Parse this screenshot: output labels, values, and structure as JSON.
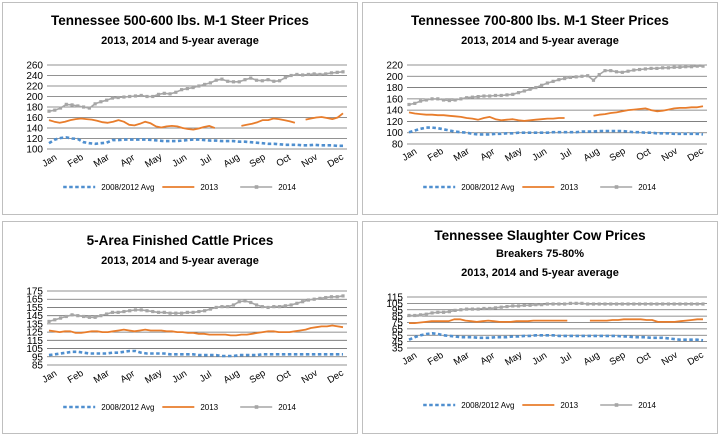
{
  "colors": {
    "avg": "#4f8fcf",
    "y2013": "#e87d2c",
    "y2014": "#a6a6a6",
    "grid": "#6e6e6e"
  },
  "chart_data": [
    {
      "type": "line",
      "title": "Tennessee 500-600 lbs. M-1 Steer Prices",
      "subtitle_lines": [
        "2013, 2014 and 5-year average"
      ],
      "x_ticks": [
        "Jan",
        "Feb",
        "Mar",
        "Apr",
        "May",
        "Jun",
        "Jul",
        "Aug",
        "Sep",
        "Oct",
        "Nov",
        "Dec"
      ],
      "x_tick_style": "rot",
      "y_ticks": [
        100,
        120,
        140,
        160,
        180,
        200,
        220,
        240,
        260
      ],
      "ylim": [
        100,
        260
      ],
      "legend": [
        "2008/2012 Avg",
        "2013",
        "2014"
      ],
      "series": [
        {
          "name": "2008/2012 Avg",
          "style": "avg",
          "values": [
            111,
            118,
            121,
            122,
            120,
            119,
            113,
            111,
            110,
            111,
            112,
            117,
            117,
            118,
            118,
            118,
            118,
            118,
            117,
            116,
            115,
            115,
            115,
            116,
            117,
            118,
            118,
            117,
            116,
            116,
            115,
            115,
            115,
            114,
            114,
            113,
            112,
            111,
            110,
            110,
            109,
            108,
            108,
            108,
            107,
            107,
            108,
            107,
            107,
            107,
            106,
            106
          ]
        },
        {
          "name": "2013",
          "style": "y2013",
          "values": [
            155,
            152,
            150,
            152,
            155,
            157,
            158,
            157,
            156,
            154,
            151,
            150,
            152,
            155,
            152,
            146,
            145,
            148,
            152,
            149,
            143,
            141,
            143,
            144,
            143,
            140,
            138,
            137,
            139,
            142,
            144,
            140,
            null,
            null,
            null,
            null,
            144,
            146,
            148,
            151,
            155,
            155,
            158,
            157,
            155,
            153,
            150,
            null,
            156,
            158,
            160,
            161,
            159,
            157,
            160,
            168
          ]
        },
        {
          "name": "2014",
          "style": "y2014",
          "values": [
            172,
            174,
            178,
            185,
            184,
            182,
            180,
            178,
            186,
            190,
            193,
            197,
            198,
            199,
            200,
            201,
            202,
            200,
            200,
            204,
            206,
            205,
            208,
            213,
            215,
            217,
            220,
            223,
            226,
            231,
            233,
            229,
            228,
            228,
            232,
            235,
            231,
            230,
            232,
            229,
            230,
            236,
            240,
            242,
            241,
            242,
            243,
            242,
            243,
            245,
            246,
            247
          ]
        }
      ]
    },
    {
      "type": "line",
      "title": "Tennessee 700-800 lbs. M-1 Steer Prices",
      "subtitle_lines": [
        "2013, 2014 and 5-year average"
      ],
      "x_ticks": [
        "Jan",
        "Feb",
        "Mar",
        "Apr",
        "May",
        "Jun",
        "Jul",
        "Aug",
        "Sep",
        "Oct",
        "Nov",
        "Dec"
      ],
      "x_tick_style": "rot",
      "y_ticks": [
        80,
        100,
        120,
        140,
        160,
        180,
        200,
        220
      ],
      "ylim": [
        80,
        220
      ],
      "legend": [
        "2008/2012 Avg",
        "2013",
        "2014"
      ],
      "series": [
        {
          "name": "2008/2012 Avg",
          "style": "avg",
          "values": [
            101,
            104,
            107,
            109,
            109,
            108,
            106,
            104,
            102,
            101,
            100,
            98,
            97,
            97,
            97,
            98,
            98,
            99,
            99,
            100,
            100,
            100,
            100,
            100,
            100,
            101,
            101,
            101,
            101,
            101,
            102,
            102,
            102,
            103,
            103,
            103,
            103,
            103,
            102,
            101,
            101,
            100,
            100,
            99,
            99,
            99,
            98,
            98,
            98,
            98,
            98,
            97
          ]
        },
        {
          "name": "2013",
          "style": "y2013",
          "values": [
            136,
            134,
            133,
            132,
            132,
            131,
            131,
            130,
            129,
            128,
            126,
            125,
            123,
            126,
            128,
            124,
            122,
            123,
            124,
            122,
            121,
            122,
            123,
            124,
            125,
            125,
            126,
            126,
            null,
            null,
            null,
            null,
            130,
            132,
            133,
            135,
            136,
            138,
            140,
            141,
            142,
            143,
            140,
            138,
            139,
            141,
            143,
            144,
            144,
            145,
            145,
            147
          ]
        },
        {
          "name": "2014",
          "style": "y2014",
          "values": [
            150,
            152,
            156,
            158,
            160,
            160,
            158,
            157,
            158,
            160,
            162,
            163,
            164,
            165,
            165,
            166,
            166,
            167,
            168,
            171,
            174,
            177,
            180,
            184,
            188,
            191,
            194,
            196,
            198,
            199,
            200,
            201,
            193,
            203,
            210,
            210,
            208,
            207,
            209,
            211,
            212,
            213,
            214,
            214,
            215,
            215,
            216,
            216,
            217,
            217,
            218,
            218
          ]
        }
      ]
    },
    {
      "type": "line",
      "title": "5-Area Finished Cattle Prices",
      "subtitle_lines": [
        "2013, 2014 and 5-year average"
      ],
      "x_ticks": [
        "Jan",
        "Feb",
        "Mar",
        "Apr",
        "May",
        "Jun",
        "Jul",
        "Aug",
        "Sep",
        "Oct",
        "Nov",
        "Dec"
      ],
      "x_tick_style": "rot",
      "y_ticks": [
        85,
        95,
        105,
        115,
        125,
        135,
        145,
        155,
        165,
        175
      ],
      "ylim": [
        85,
        175
      ],
      "legend": [
        "2008/2012 Avg",
        "2013",
        "2014"
      ],
      "series": [
        {
          "name": "2008/2012 Avg",
          "style": "avg",
          "values": [
            97,
            98,
            99,
            100,
            101,
            101,
            100,
            99,
            99,
            99,
            99,
            100,
            100,
            101,
            102,
            102,
            100,
            99,
            99,
            99,
            99,
            98,
            98,
            98,
            98,
            98,
            97,
            97,
            97,
            97,
            96,
            96,
            96,
            97,
            97,
            97,
            97,
            98,
            98,
            98,
            98,
            98,
            98,
            98,
            98,
            98,
            98,
            98,
            98,
            98,
            98,
            98
          ]
        },
        {
          "name": "2013",
          "style": "y2013",
          "values": [
            127,
            126,
            125,
            126,
            126,
            124,
            124,
            125,
            126,
            126,
            125,
            125,
            126,
            127,
            128,
            127,
            126,
            127,
            128,
            127,
            127,
            127,
            126,
            126,
            125,
            125,
            124,
            124,
            123,
            123,
            122,
            122,
            122,
            122,
            121,
            121,
            122,
            122,
            123,
            124,
            125,
            126,
            126,
            125,
            125,
            125,
            126,
            127,
            128,
            130,
            131,
            132,
            132,
            133,
            132,
            131
          ]
        },
        {
          "name": "2014",
          "style": "y2014",
          "values": [
            138,
            140,
            142,
            144,
            146,
            145,
            144,
            143,
            143,
            145,
            147,
            149,
            149,
            150,
            151,
            152,
            152,
            151,
            150,
            149,
            149,
            148,
            148,
            148,
            149,
            149,
            150,
            151,
            153,
            155,
            156,
            156,
            158,
            162,
            163,
            161,
            158,
            156,
            155,
            156,
            156,
            157,
            158,
            160,
            162,
            164,
            165,
            166,
            167,
            168,
            168,
            169
          ]
        }
      ]
    },
    {
      "type": "line",
      "title": "Tennessee Slaughter Cow Prices",
      "subtitle_lines": [
        "Breakers 75-80%",
        "2013, 2014 and 5-year average"
      ],
      "x_ticks": [
        "Jan",
        "Feb",
        "Mar",
        "Apr",
        "May",
        "Jun",
        "Jul",
        "Aug",
        "Sep",
        "Oct",
        "Nov",
        "Dec"
      ],
      "x_tick_style": "rot",
      "y_ticks": [
        35,
        45,
        55,
        65,
        75,
        85,
        95,
        105,
        115
      ],
      "ylim": [
        35,
        115
      ],
      "legend": [
        "2008/2012 Avg",
        "2013",
        "2014"
      ],
      "series": [
        {
          "name": "2008/2012 Avg",
          "style": "avg",
          "values": [
            48,
            52,
            55,
            57,
            58,
            57,
            55,
            54,
            53,
            52,
            52,
            52,
            51,
            51,
            51,
            52,
            52,
            52,
            53,
            53,
            54,
            54,
            55,
            55,
            55,
            55,
            54,
            54,
            54,
            54,
            54,
            54,
            54,
            54,
            54,
            54,
            54,
            53,
            53,
            52,
            52,
            52,
            51,
            51,
            51,
            50,
            49,
            48,
            48,
            48,
            48,
            47
          ]
        },
        {
          "name": "2013",
          "style": "y2013",
          "values": [
            74,
            74,
            75,
            76,
            77,
            77,
            77,
            77,
            80,
            80,
            78,
            77,
            76,
            77,
            78,
            77,
            76,
            76,
            76,
            77,
            77,
            77,
            78,
            78,
            78,
            78,
            78,
            78,
            78,
            null,
            null,
            null,
            78,
            78,
            78,
            78,
            79,
            79,
            80,
            80,
            80,
            80,
            79,
            79,
            76,
            76,
            76,
            76,
            77,
            78,
            79,
            80,
            80
          ]
        },
        {
          "name": "2014",
          "style": "y2014",
          "values": [
            86,
            86,
            87,
            88,
            90,
            91,
            91,
            92,
            94,
            95,
            96,
            96,
            96,
            97,
            97,
            98,
            99,
            100,
            101,
            101,
            102,
            102,
            103,
            103,
            104,
            104,
            104,
            104,
            105,
            105,
            105,
            104,
            104,
            104,
            104,
            104,
            104,
            104,
            104,
            104,
            104,
            104,
            104,
            104,
            104,
            104,
            104,
            104,
            104,
            104,
            104,
            104
          ]
        }
      ]
    }
  ]
}
